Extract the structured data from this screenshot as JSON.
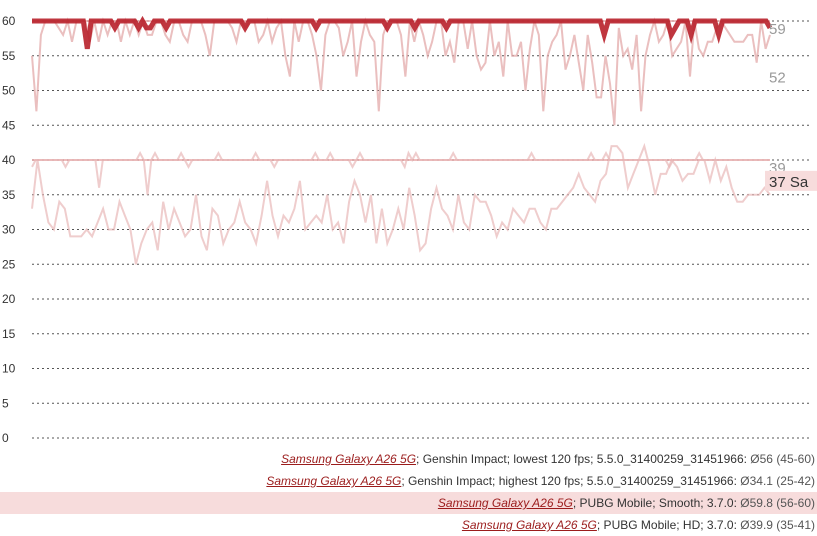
{
  "chart_data": {
    "type": "line",
    "y_ticks": [
      "0",
      "5",
      "10",
      "15",
      "20",
      "25",
      "30",
      "35",
      "40",
      "45",
      "50",
      "55",
      "60"
    ],
    "ylim": [
      0,
      62
    ],
    "grid": true,
    "legend_position": "bottom-right",
    "end_labels": [
      {
        "text": "59",
        "value": 59,
        "color": "#999999"
      },
      {
        "text": "52",
        "value": 52,
        "color": "#999999"
      },
      {
        "text": "39",
        "value": 39,
        "color": "#999999"
      },
      {
        "text": "37 Sa",
        "value": 37,
        "color": "#333333",
        "highlight": true
      }
    ],
    "reference_lines": [
      {
        "value": 60,
        "color": "#d45a5a"
      },
      {
        "value": 40,
        "color": "#d45a5a"
      }
    ],
    "series": [
      {
        "color": "#b8202a",
        "width": 5,
        "opacity": 0.9,
        "values": [
          60,
          60,
          60,
          60,
          60,
          60,
          60,
          60,
          60,
          60,
          60,
          60,
          60,
          60,
          56,
          60,
          60,
          60,
          60,
          60,
          60,
          59,
          60,
          60,
          60,
          60,
          60,
          59,
          60,
          59,
          59,
          60,
          60,
          60,
          59,
          60,
          60,
          60,
          60,
          60,
          60,
          60,
          60,
          60,
          60,
          60,
          60,
          60,
          60,
          60,
          60,
          60,
          60,
          60,
          59,
          60,
          60,
          60,
          60,
          60,
          60,
          60,
          60,
          60,
          60,
          60,
          60,
          60,
          60,
          60,
          60,
          60,
          59,
          60,
          60,
          60,
          60,
          60,
          60,
          60,
          60,
          60,
          60,
          60,
          60,
          60,
          60,
          60,
          60,
          60,
          59,
          60,
          60,
          60,
          60,
          60,
          60,
          59,
          60,
          60,
          60,
          60,
          60,
          60,
          60,
          59,
          60,
          60,
          60,
          60,
          60,
          60,
          60,
          60,
          60,
          60,
          60,
          60,
          60,
          60,
          60,
          60,
          60,
          60,
          60,
          60,
          60,
          60,
          60,
          60,
          60,
          60,
          60,
          60,
          60,
          60,
          60,
          60,
          60,
          60,
          60,
          60,
          60,
          60,
          60,
          58,
          60,
          60,
          60,
          60,
          60,
          60,
          60,
          60,
          60,
          60,
          60,
          60,
          60,
          60,
          60,
          60,
          58,
          59,
          60,
          60,
          60,
          58,
          60,
          60,
          60,
          60,
          60,
          60,
          58,
          60,
          60,
          60,
          60,
          60,
          60,
          60,
          60,
          60,
          60,
          60,
          60,
          59
        ]
      },
      {
        "color": "#e3aaaa",
        "width": 2,
        "opacity": 0.75,
        "values": [
          55,
          47,
          58,
          60,
          60,
          60,
          59,
          58,
          60,
          57,
          60,
          60,
          60,
          57,
          60,
          57,
          60,
          58,
          60,
          60,
          57,
          60,
          58,
          60,
          58,
          60,
          58,
          58,
          60,
          60,
          58,
          57,
          60,
          60,
          58,
          57,
          60,
          60,
          60,
          58,
          55,
          60,
          60,
          60,
          60,
          59,
          57,
          60,
          59,
          60,
          60,
          57,
          58,
          60,
          57,
          59,
          60,
          55,
          52,
          60,
          57,
          60,
          60,
          58,
          55,
          50,
          58,
          60,
          60,
          59,
          55,
          57,
          60,
          52,
          57,
          60,
          58,
          57,
          47,
          58,
          60,
          60,
          60,
          58,
          52,
          60,
          57,
          60,
          58,
          55,
          57,
          60,
          60,
          55,
          57,
          54,
          60,
          60,
          56,
          60,
          55,
          53,
          54,
          60,
          55,
          57,
          52,
          60,
          55,
          55,
          57,
          50,
          56,
          60,
          58,
          47,
          55,
          57,
          58,
          60,
          53,
          55,
          58,
          54,
          50,
          58,
          54,
          49,
          49,
          55,
          51,
          45,
          59,
          55,
          56,
          53,
          58,
          47,
          55,
          58,
          60,
          57,
          58,
          60,
          55,
          56,
          57,
          60,
          52,
          60,
          56,
          55,
          57,
          57,
          59,
          60,
          59,
          58,
          57,
          57,
          57,
          58,
          58,
          54,
          60,
          56,
          58
        ]
      },
      {
        "color": "#e8b8b8",
        "width": 2,
        "opacity": 0.7,
        "values": [
          33,
          40,
          35,
          31,
          30,
          34,
          33,
          29,
          29,
          29,
          30,
          29,
          31,
          33,
          30,
          30,
          34,
          32,
          30,
          25,
          28,
          30,
          31,
          27,
          34,
          30,
          33,
          31,
          29,
          30,
          35,
          29,
          27,
          33,
          32,
          28,
          30,
          31,
          34,
          31,
          30,
          28,
          32,
          37,
          32,
          29,
          32,
          31,
          33,
          37,
          30,
          31,
          32,
          31,
          35,
          30,
          31,
          28,
          34,
          37,
          35,
          31,
          35,
          28,
          33,
          28,
          30,
          33,
          30,
          36,
          32,
          27,
          28,
          33,
          36,
          33,
          32,
          30,
          35,
          31,
          30,
          35,
          34,
          34,
          32,
          29,
          31,
          30,
          33,
          32,
          31,
          33,
          33,
          31,
          30,
          33,
          33,
          34,
          35,
          36,
          38,
          36,
          35,
          34,
          37,
          38,
          42,
          42,
          41,
          36,
          38,
          40,
          42,
          39,
          35,
          38,
          38,
          40,
          39,
          37,
          38,
          38,
          40,
          40,
          37,
          40,
          37,
          39,
          36,
          34,
          34,
          35,
          35,
          35,
          36,
          35
        ]
      },
      {
        "color": "#e8b8b8",
        "width": 2,
        "opacity": 0.7,
        "values": [
          39,
          40,
          40,
          40,
          40,
          40,
          40,
          40,
          40,
          39,
          40,
          40,
          40,
          40,
          40,
          40,
          40,
          40,
          36,
          40,
          40,
          40,
          40,
          40,
          40,
          40,
          40,
          40,
          40,
          41,
          40,
          35,
          40,
          41,
          40,
          40,
          40,
          40,
          40,
          40,
          41,
          40,
          39,
          40,
          40,
          40,
          40,
          40,
          40,
          40,
          41,
          40,
          40,
          40,
          40,
          40,
          40,
          40,
          40,
          40,
          41,
          40,
          40,
          40,
          40,
          39,
          40,
          40,
          40,
          40,
          40,
          40,
          40,
          40,
          40,
          40,
          41,
          40,
          40,
          40,
          41,
          40,
          40,
          40,
          40,
          40,
          39,
          40,
          41,
          40,
          40,
          40,
          40,
          40,
          40,
          40,
          40,
          40,
          40,
          40,
          39,
          41,
          40,
          41,
          40,
          40,
          40,
          40,
          40,
          40,
          40,
          40,
          40,
          41,
          40,
          40,
          40,
          40,
          40,
          40,
          40,
          40,
          40,
          40,
          40,
          40,
          40,
          40,
          40,
          40,
          40,
          40,
          40,
          40,
          41,
          40,
          40,
          40,
          40,
          40,
          40,
          40,
          40,
          40,
          40,
          40,
          40,
          40,
          40,
          40,
          41,
          40,
          40,
          40,
          41,
          40,
          40,
          40,
          40,
          40,
          40,
          40,
          40,
          40,
          40,
          40,
          40,
          40,
          40,
          40,
          40,
          39,
          40,
          40,
          40,
          40,
          40,
          40,
          40,
          41,
          40,
          40,
          40,
          40,
          40,
          40,
          40,
          40,
          40,
          40,
          40,
          40,
          40,
          40,
          40,
          40,
          40,
          40,
          40
        ]
      }
    ]
  },
  "legend": [
    {
      "device": "Samsung Galaxy A26 5G",
      "text": "; Genshin Impact; lowest 120 fps; 5.5.0_31400259_31451966: ",
      "stats": "Ø56 (45-60)",
      "highlight": false
    },
    {
      "device": "Samsung Galaxy A26 5G",
      "text": "; Genshin Impact; highest 120 fps; 5.5.0_31400259_31451966: ",
      "stats": "Ø34.1 (25-42)",
      "highlight": false
    },
    {
      "device": "Samsung Galaxy A26 5G",
      "text": "; PUBG Mobile; Smooth; 3.7.0: ",
      "stats": "Ø59.8 (56-60)",
      "highlight": true
    },
    {
      "device": "Samsung Galaxy A26 5G",
      "text": "; PUBG Mobile; HD; 3.7.0: ",
      "stats": "Ø39.9 (35-41)",
      "highlight": false
    }
  ]
}
